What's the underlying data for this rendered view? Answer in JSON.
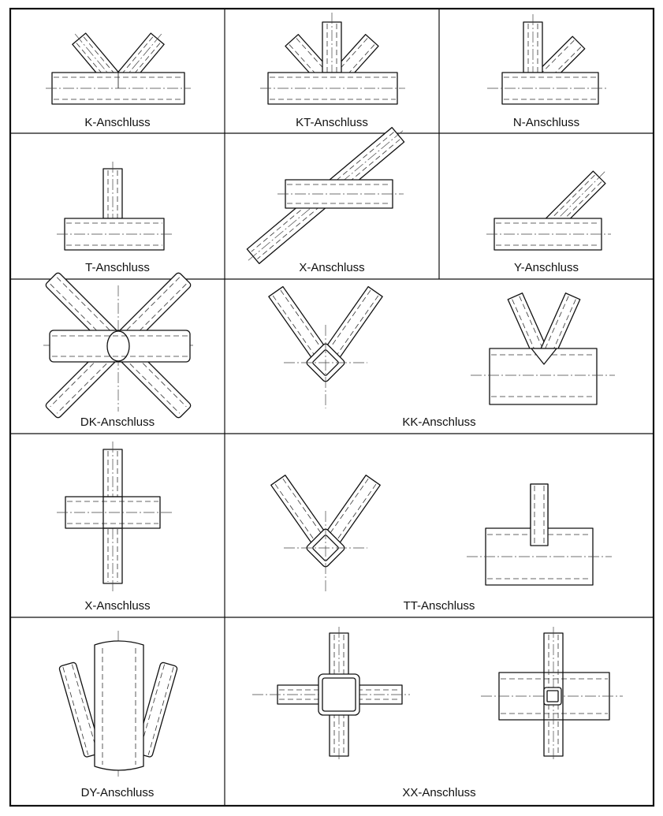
{
  "cells": [
    {
      "id": "k",
      "label": "K-Anschluss"
    },
    {
      "id": "kt",
      "label": "KT-Anschluss"
    },
    {
      "id": "n",
      "label": "N-Anschluss"
    },
    {
      "id": "t",
      "label": "T-Anschluss"
    },
    {
      "id": "x",
      "label": "X-Anschluss"
    },
    {
      "id": "y",
      "label": "Y-Anschluss"
    },
    {
      "id": "dk",
      "label": "DK-Anschluss"
    },
    {
      "id": "kk",
      "label": "KK-Anschluss"
    },
    {
      "id": "x2",
      "label": "X-Anschluss"
    },
    {
      "id": "tt",
      "label": "TT-Anschluss"
    },
    {
      "id": "dy",
      "label": "DY-Anschluss"
    },
    {
      "id": "xx",
      "label": "XX-Anschluss"
    }
  ]
}
